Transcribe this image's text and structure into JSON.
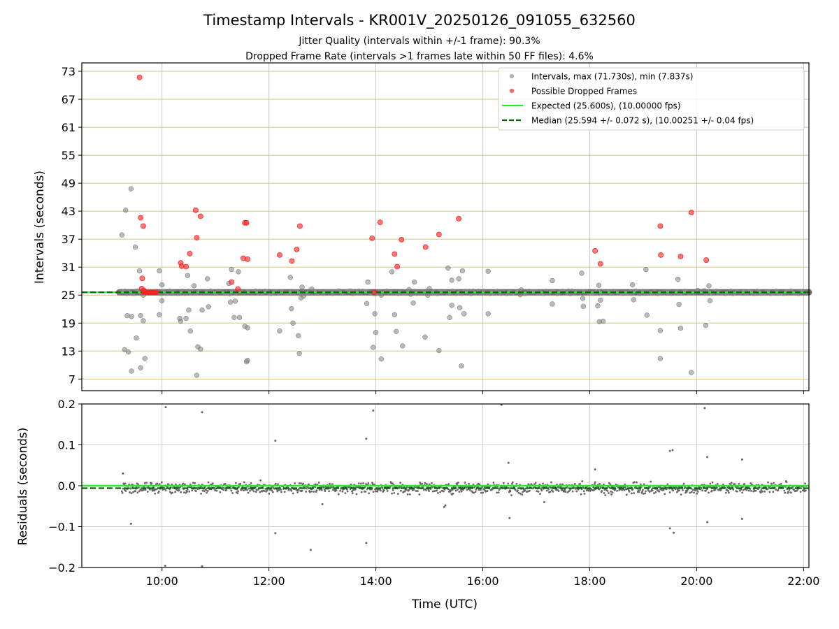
{
  "chart_data": {
    "title": "Timestamp Intervals - KR001V_20250126_091055_632560",
    "subtitles": [
      "Jitter Quality (intervals within +/-1 frame): 90.3%",
      "Dropped Frame Rate (intervals >1 frames late within 50 FF files): 4.6%"
    ],
    "xlabel": "Time (UTC)",
    "xlim_hours": [
      8.5,
      22.1
    ],
    "xticks": [
      {
        "hour": 10,
        "label": "10:00"
      },
      {
        "hour": 12,
        "label": "12:00"
      },
      {
        "hour": 14,
        "label": "14:00"
      },
      {
        "hour": 16,
        "label": "16:00"
      },
      {
        "hour": 18,
        "label": "18:00"
      },
      {
        "hour": 20,
        "label": "20:00"
      },
      {
        "hour": 22,
        "label": "22:00"
      }
    ],
    "top": {
      "type": "scatter",
      "ylabel": "Intervals (seconds)",
      "ylim": [
        4.5,
        74.8
      ],
      "yticks": [
        7,
        13,
        19,
        25,
        31,
        37,
        43,
        49,
        55,
        61,
        67,
        73
      ],
      "expected": 25.6,
      "median": 25.594,
      "band_range": [
        9.2,
        22.1
      ],
      "legend": [
        {
          "label": "Intervals, max (71.730s), min (7.837s)",
          "kind": "gray-dot"
        },
        {
          "label": "Possible Dropped Frames",
          "kind": "red-dot"
        },
        {
          "label": "Expected (25.600s), (10.00000 fps)",
          "kind": "green-line"
        },
        {
          "label": "Median (25.594 +/- 0.072 s), (10.00251 +/- 0.04 fps)",
          "kind": "dark-dash"
        }
      ],
      "gray_points": [
        [
          9.25,
          37.9
        ],
        [
          9.3,
          13.3
        ],
        [
          9.32,
          43.2
        ],
        [
          9.35,
          20.6
        ],
        [
          9.37,
          12.8
        ],
        [
          9.42,
          47.8
        ],
        [
          9.43,
          20.4
        ],
        [
          9.43,
          8.7
        ],
        [
          9.5,
          35.3
        ],
        [
          9.52,
          15.8
        ],
        [
          9.58,
          30.2
        ],
        [
          9.6,
          20.6
        ],
        [
          9.6,
          9.4
        ],
        [
          9.65,
          19.5
        ],
        [
          9.65,
          25.0
        ],
        [
          9.68,
          11.4
        ],
        [
          9.95,
          30.2
        ],
        [
          9.95,
          20.8
        ],
        [
          10.0,
          27.2
        ],
        [
          10.0,
          23.8
        ],
        [
          10.33,
          20.0
        ],
        [
          10.35,
          19.4
        ],
        [
          10.38,
          25.8
        ],
        [
          10.45,
          20.0
        ],
        [
          10.48,
          29.2
        ],
        [
          10.5,
          21.8
        ],
        [
          10.53,
          17.3
        ],
        [
          10.6,
          27.0
        ],
        [
          10.65,
          7.8
        ],
        [
          10.67,
          13.9
        ],
        [
          10.72,
          13.4
        ],
        [
          10.75,
          21.8
        ],
        [
          10.75,
          25.6
        ],
        [
          10.85,
          28.5
        ],
        [
          10.87,
          22.5
        ],
        [
          11.25,
          27.5
        ],
        [
          11.28,
          23.5
        ],
        [
          11.3,
          30.5
        ],
        [
          11.35,
          20.2
        ],
        [
          11.37,
          23.7
        ],
        [
          11.43,
          30.0
        ],
        [
          11.45,
          20.2
        ],
        [
          11.55,
          18.3
        ],
        [
          11.58,
          10.7
        ],
        [
          11.6,
          18.0
        ],
        [
          11.6,
          11.0
        ],
        [
          12.2,
          17.3
        ],
        [
          12.4,
          28.8
        ],
        [
          12.42,
          22.1
        ],
        [
          12.45,
          19.0
        ],
        [
          12.55,
          16.3
        ],
        [
          12.57,
          12.5
        ],
        [
          12.6,
          24.4
        ],
        [
          12.62,
          26.7
        ],
        [
          12.65,
          24.8
        ],
        [
          12.75,
          25.8
        ],
        [
          12.8,
          26.3
        ],
        [
          13.83,
          23.2
        ],
        [
          13.85,
          27.8
        ],
        [
          13.95,
          13.8
        ],
        [
          13.98,
          21.0
        ],
        [
          14.0,
          17.0
        ],
        [
          14.1,
          11.3
        ],
        [
          14.1,
          25.0
        ],
        [
          14.3,
          30.0
        ],
        [
          14.35,
          20.8
        ],
        [
          14.38,
          17.2
        ],
        [
          14.45,
          25.7
        ],
        [
          14.5,
          14.1
        ],
        [
          14.62,
          26.2
        ],
        [
          14.65,
          25.2
        ],
        [
          14.7,
          23.3
        ],
        [
          14.72,
          27.8
        ],
        [
          14.92,
          16.0
        ],
        [
          14.95,
          25.8
        ],
        [
          14.97,
          25.0
        ],
        [
          15.0,
          26.4
        ],
        [
          15.18,
          13.1
        ],
        [
          15.35,
          30.8
        ],
        [
          15.38,
          20.2
        ],
        [
          15.42,
          22.8
        ],
        [
          15.42,
          28.2
        ],
        [
          15.55,
          28.5
        ],
        [
          15.57,
          22.3
        ],
        [
          15.6,
          9.8
        ],
        [
          15.62,
          30.2
        ],
        [
          15.65,
          21.0
        ],
        [
          16.1,
          21.0
        ],
        [
          16.1,
          30.1
        ],
        [
          16.7,
          25.1
        ],
        [
          16.72,
          26.1
        ],
        [
          17.3,
          23.1
        ],
        [
          17.3,
          28.1
        ],
        [
          17.85,
          29.7
        ],
        [
          17.87,
          24.3
        ],
        [
          17.88,
          22.6
        ],
        [
          18.15,
          22.7
        ],
        [
          18.17,
          27.1
        ],
        [
          18.18,
          19.3
        ],
        [
          18.2,
          23.9
        ],
        [
          18.25,
          19.4
        ],
        [
          18.8,
          27.2
        ],
        [
          18.82,
          24.0
        ],
        [
          19.05,
          30.5
        ],
        [
          19.07,
          20.7
        ],
        [
          19.32,
          17.4
        ],
        [
          19.32,
          11.4
        ],
        [
          19.55,
          25.6
        ],
        [
          19.65,
          28.4
        ],
        [
          19.67,
          23.0
        ],
        [
          19.7,
          17.9
        ],
        [
          19.9,
          8.4
        ],
        [
          19.92,
          25.6
        ],
        [
          20.02,
          26.0
        ],
        [
          20.08,
          25.6
        ],
        [
          20.15,
          25.9
        ],
        [
          20.17,
          18.5
        ],
        [
          20.23,
          27.0
        ],
        [
          20.25,
          23.8
        ]
      ],
      "red_points": [
        [
          9.58,
          71.7
        ],
        [
          9.6,
          41.6
        ],
        [
          9.63,
          28.6
        ],
        [
          9.65,
          39.8
        ],
        [
          9.62,
          26.4
        ],
        [
          9.66,
          26.0
        ],
        [
          10.35,
          31.9
        ],
        [
          10.37,
          31.2
        ],
        [
          10.45,
          31.1
        ],
        [
          10.52,
          33.9
        ],
        [
          10.63,
          43.2
        ],
        [
          10.65,
          37.3
        ],
        [
          10.72,
          41.9
        ],
        [
          11.3,
          27.8
        ],
        [
          11.42,
          26.3
        ],
        [
          11.52,
          32.9
        ],
        [
          11.55,
          40.5
        ],
        [
          11.58,
          40.5
        ],
        [
          11.6,
          32.7
        ],
        [
          12.2,
          33.6
        ],
        [
          12.43,
          32.3
        ],
        [
          12.52,
          34.8
        ],
        [
          12.58,
          39.8
        ],
        [
          13.93,
          37.2
        ],
        [
          13.97,
          25.6
        ],
        [
          14.08,
          40.6
        ],
        [
          14.35,
          33.8
        ],
        [
          14.4,
          31.1
        ],
        [
          14.48,
          36.9
        ],
        [
          14.93,
          35.3
        ],
        [
          15.18,
          38.0
        ],
        [
          15.55,
          41.4
        ],
        [
          18.1,
          34.5
        ],
        [
          18.2,
          31.7
        ],
        [
          19.32,
          39.8
        ],
        [
          19.33,
          33.6
        ],
        [
          19.7,
          33.3
        ],
        [
          19.9,
          42.7
        ],
        [
          20.18,
          32.5
        ]
      ],
      "red_cluster": {
        "from": 9.65,
        "to": 9.92,
        "y": 25.6
      }
    },
    "bottom": {
      "type": "scatter",
      "ylabel": "Residuals (seconds)",
      "ylim": [
        -0.2,
        0.2
      ],
      "yticks": [
        {
          "v": 0.2,
          "label": "0.2"
        },
        {
          "v": 0.1,
          "label": "0.1"
        },
        {
          "v": 0.0,
          "label": "0.0"
        },
        {
          "v": -0.1,
          "label": "−0.1"
        },
        {
          "v": -0.2,
          "label": "−0.2"
        }
      ],
      "expected": 0.0,
      "median": -0.006,
      "outliers": [
        [
          9.27,
          0.03
        ],
        [
          9.42,
          -0.093
        ],
        [
          10.07,
          0.192
        ],
        [
          10.06,
          -0.196
        ],
        [
          10.75,
          0.18
        ],
        [
          10.75,
          -0.197
        ],
        [
          12.12,
          0.11
        ],
        [
          12.12,
          -0.116
        ],
        [
          12.78,
          -0.157
        ],
        [
          13.82,
          0.115
        ],
        [
          13.82,
          -0.14
        ],
        [
          13.95,
          0.184
        ],
        [
          16.35,
          0.198
        ],
        [
          16.48,
          0.056
        ],
        [
          16.5,
          -0.079
        ],
        [
          19.5,
          0.085
        ],
        [
          19.55,
          0.087
        ],
        [
          19.5,
          -0.104
        ],
        [
          19.57,
          -0.115
        ],
        [
          20.15,
          0.19
        ],
        [
          20.2,
          0.07
        ],
        [
          20.2,
          -0.089
        ],
        [
          20.85,
          0.064
        ],
        [
          20.85,
          -0.081
        ],
        [
          15.3,
          -0.048
        ],
        [
          15.28,
          -0.052
        ],
        [
          13.0,
          -0.045
        ],
        [
          17.15,
          -0.04
        ],
        [
          18.1,
          0.04
        ]
      ]
    }
  }
}
